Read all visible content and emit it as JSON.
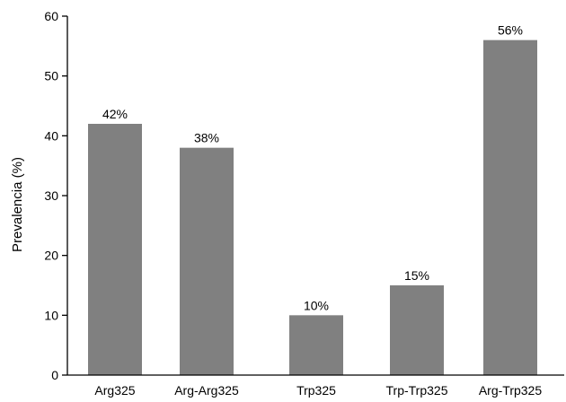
{
  "chart_data": {
    "type": "bar",
    "categories": [
      "Arg325",
      "Arg-Arg325",
      "Trp325",
      "Trp-Trp325",
      "Arg-Trp325"
    ],
    "values": [
      42,
      38,
      10,
      15,
      56
    ],
    "data_labels": [
      "42%",
      "38%",
      "10%",
      "15%",
      "56%"
    ],
    "title": "",
    "xlabel": "",
    "ylabel": "Prevalencia (%)",
    "ylim": [
      0,
      60
    ],
    "yticks": [
      0,
      10,
      20,
      30,
      40,
      50,
      60
    ],
    "ytick_labels": [
      "0",
      "10",
      "20",
      "30",
      "40",
      "50",
      "60"
    ],
    "grid": false,
    "legend": "none",
    "colors": {
      "bar": "#808080",
      "axis": "#000000",
      "text": "#000000"
    }
  }
}
